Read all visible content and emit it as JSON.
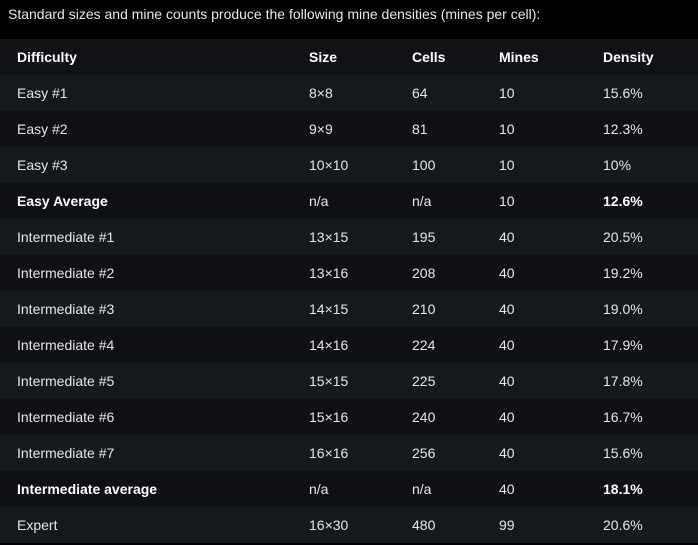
{
  "intro": "Standard sizes and mine counts produce the following mine densities (mines per cell):",
  "table": {
    "headers": [
      "Difficulty",
      "Size",
      "Cells",
      "Mines",
      "Density"
    ],
    "rows": [
      {
        "difficulty": "Easy #1",
        "size": "8×8",
        "cells": "64",
        "mines": "10",
        "density": "15.6%",
        "bold_label": false,
        "bold_density": false
      },
      {
        "difficulty": "Easy #2",
        "size": "9×9",
        "cells": "81",
        "mines": "10",
        "density": "12.3%",
        "bold_label": false,
        "bold_density": false
      },
      {
        "difficulty": "Easy #3",
        "size": "10×10",
        "cells": "100",
        "mines": "10",
        "density": "10%",
        "bold_label": false,
        "bold_density": false
      },
      {
        "difficulty": "Easy Average",
        "size": "n/a",
        "cells": "n/a",
        "mines": "10",
        "density": "12.6%",
        "bold_label": true,
        "bold_density": true
      },
      {
        "difficulty": "Intermediate #1",
        "size": "13×15",
        "cells": "195",
        "mines": "40",
        "density": "20.5%",
        "bold_label": false,
        "bold_density": false
      },
      {
        "difficulty": "Intermediate #2",
        "size": "13×16",
        "cells": "208",
        "mines": "40",
        "density": "19.2%",
        "bold_label": false,
        "bold_density": false
      },
      {
        "difficulty": "Intermediate #3",
        "size": "14×15",
        "cells": "210",
        "mines": "40",
        "density": "19.0%",
        "bold_label": false,
        "bold_density": false
      },
      {
        "difficulty": "Intermediate #4",
        "size": "14×16",
        "cells": "224",
        "mines": "40",
        "density": "17.9%",
        "bold_label": false,
        "bold_density": false
      },
      {
        "difficulty": "Intermediate #5",
        "size": "15×15",
        "cells": "225",
        "mines": "40",
        "density": "17.8%",
        "bold_label": false,
        "bold_density": false
      },
      {
        "difficulty": "Intermediate #6",
        "size": "15×16",
        "cells": "240",
        "mines": "40",
        "density": "16.7%",
        "bold_label": false,
        "bold_density": false
      },
      {
        "difficulty": "Intermediate #7",
        "size": "16×16",
        "cells": "256",
        "mines": "40",
        "density": "15.6%",
        "bold_label": false,
        "bold_density": false
      },
      {
        "difficulty": "Intermediate average",
        "size": "n/a",
        "cells": "n/a",
        "mines": "40",
        "density": "18.1%",
        "bold_label": true,
        "bold_density": true
      },
      {
        "difficulty": "Expert",
        "size": "16×30",
        "cells": "480",
        "mines": "99",
        "density": "20.6%",
        "bold_label": false,
        "bold_density": false
      }
    ]
  }
}
